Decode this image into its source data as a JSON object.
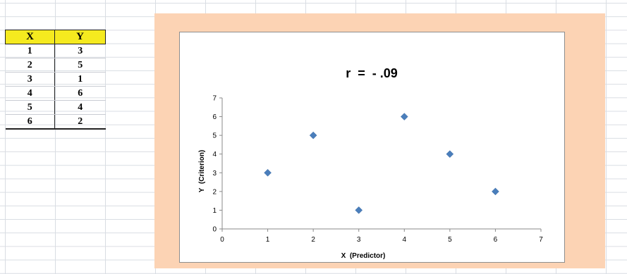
{
  "sheet": {
    "headers": {
      "x": "X",
      "y": "Y"
    },
    "rows": [
      {
        "x": "1",
        "y": "3"
      },
      {
        "x": "2",
        "y": "5"
      },
      {
        "x": "3",
        "y": "1"
      },
      {
        "x": "4",
        "y": "6"
      },
      {
        "x": "5",
        "y": "4"
      },
      {
        "x": "6",
        "y": "2"
      }
    ],
    "header_color": "#f5ea1f"
  },
  "chart_data": {
    "type": "scatter",
    "title": "r  =  - .09",
    "xlabel": "X  (Predictor)",
    "ylabel": "Y  (Criterion)",
    "xlim": [
      0,
      7
    ],
    "ylim": [
      0,
      7
    ],
    "x_ticks": [
      "0",
      "1",
      "2",
      "3",
      "4",
      "5",
      "6",
      "7"
    ],
    "y_ticks": [
      "0",
      "1",
      "2",
      "3",
      "4",
      "5",
      "6",
      "7"
    ],
    "x": [
      1,
      2,
      3,
      4,
      5,
      6
    ],
    "y": [
      3,
      5,
      1,
      6,
      4,
      2
    ],
    "marker": "diamond",
    "marker_color": "#4a7ebb",
    "chart_background": "#fcd3b4",
    "grid": false,
    "legend": "none"
  }
}
